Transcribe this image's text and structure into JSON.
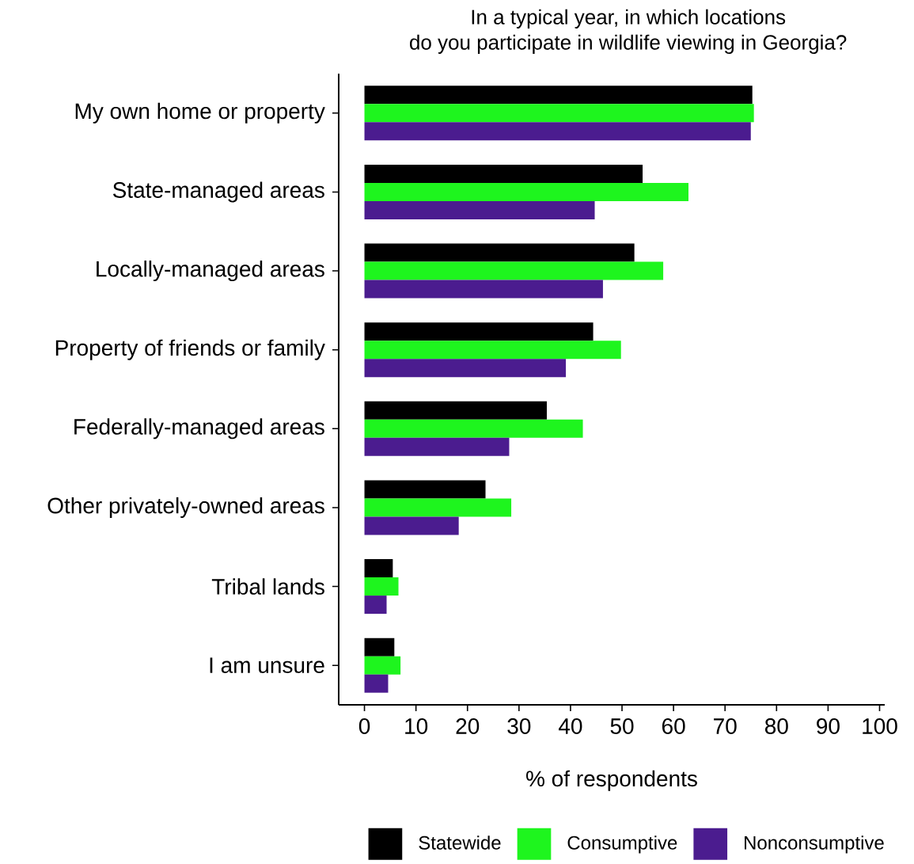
{
  "chart_data": {
    "type": "bar",
    "orientation": "horizontal",
    "title": "In a typical year, in which locations\ndo you participate in wildlife viewing in Georgia?",
    "xlabel": "% of respondents",
    "categories": [
      "My own home or property",
      "State-managed areas",
      "Locally-managed areas",
      "Property of friends or family",
      "Federally-managed areas",
      "Other privately-owned areas",
      "Tribal lands",
      "I am unsure"
    ],
    "series": [
      {
        "name": "Statewide",
        "color": "#000000",
        "values": [
          75.3,
          54.0,
          52.4,
          44.4,
          35.4,
          23.5,
          5.5,
          5.8
        ]
      },
      {
        "name": "Consumptive",
        "color": "#1ef51e",
        "values": [
          75.6,
          62.9,
          58.0,
          49.8,
          42.4,
          28.5,
          6.6,
          7.0
        ]
      },
      {
        "name": "Nonconsumptive",
        "color": "#4b1c8f",
        "values": [
          75.0,
          44.7,
          46.3,
          39.1,
          28.1,
          18.3,
          4.3,
          4.6
        ]
      }
    ],
    "xlim": [
      -5,
      101
    ],
    "xticks": [
      0,
      10,
      20,
      30,
      40,
      50,
      60,
      70,
      80,
      90,
      100
    ],
    "grid": false,
    "legend": "bottom"
  }
}
